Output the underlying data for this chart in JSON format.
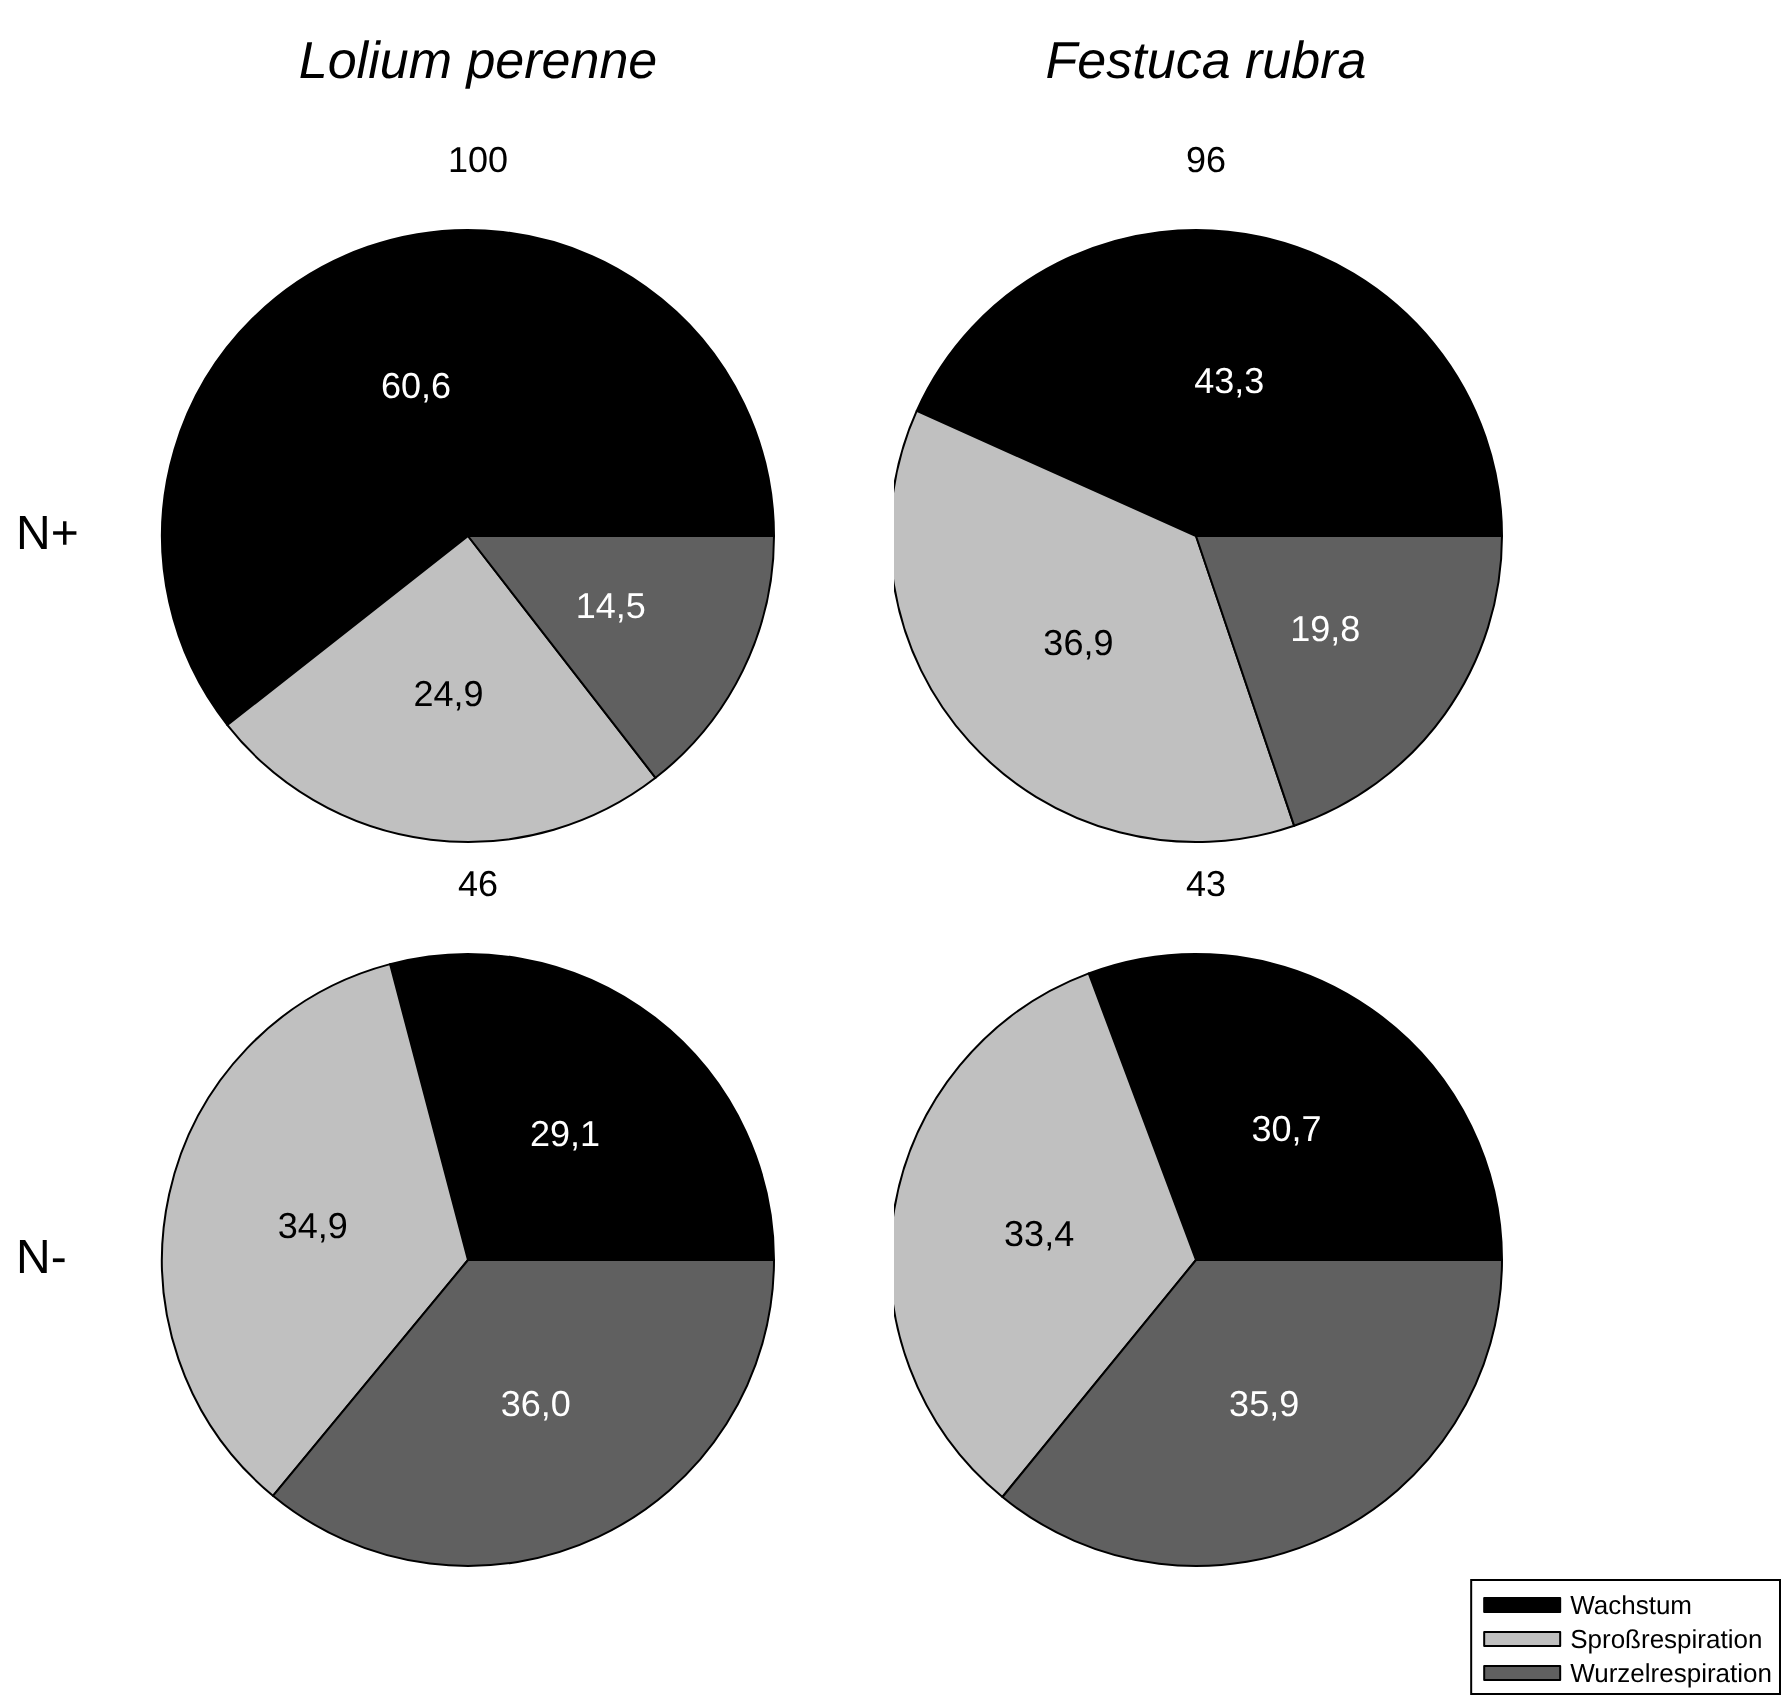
{
  "chart_data": [
    {
      "type": "pie",
      "title": "Lolium perenne",
      "subtitle": "100",
      "ylabel": "N+",
      "categories": [
        null,
        null,
        null
      ],
      "values": [
        60.6,
        24.9,
        14.5
      ],
      "value_labels": [
        "60,6",
        "24,9",
        "14,5"
      ],
      "colors": [
        "#000000",
        "#c0c0c0",
        "#606060"
      ],
      "legend": false
    },
    {
      "type": "pie",
      "title": "Festuca rubra",
      "subtitle": "96",
      "categories": [
        null,
        null,
        null
      ],
      "values": [
        43.3,
        36.9,
        19.8
      ],
      "value_labels": [
        "43,3",
        "36,9",
        "19,8"
      ],
      "colors": [
        "#000000",
        "#c0c0c0",
        "#606060"
      ],
      "legend": false
    },
    {
      "type": "pie",
      "subtitle": "46",
      "ylabel": "N-",
      "categories": [
        null,
        null,
        null
      ],
      "values": [
        29.1,
        34.9,
        36.0
      ],
      "value_labels": [
        "29,1",
        "34,9",
        "36,0"
      ],
      "colors": [
        "#000000",
        "#c0c0c0",
        "#606060"
      ],
      "legend": false
    },
    {
      "type": "pie",
      "subtitle": "43",
      "categories": [
        "Wachstum",
        "Sproßrespiration",
        "Wurzelrespiration"
      ],
      "values": [
        30.7,
        33.4,
        35.9
      ],
      "value_labels": [
        "30,7",
        "33,4",
        "35,9"
      ],
      "colors": [
        "#000000",
        "#c0c0c0",
        "#606060"
      ],
      "legend": "bottom right"
    }
  ]
}
